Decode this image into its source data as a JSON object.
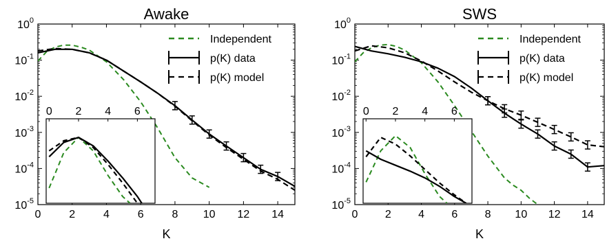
{
  "chart_data": [
    {
      "type": "line",
      "title": "Awake",
      "xlabel": "K",
      "ylabel": "",
      "xlim": [
        0,
        15
      ],
      "ylim": [
        1e-05,
        1
      ],
      "yscale": "log",
      "x_ticks": [
        0,
        2,
        4,
        6,
        8,
        10,
        12,
        14
      ],
      "y_ticks": [
        {
          "base": "10",
          "exp": "0"
        },
        {
          "base": "10",
          "exp": "-1"
        },
        {
          "base": "10",
          "exp": "-2"
        },
        {
          "base": "10",
          "exp": "-3"
        },
        {
          "base": "10",
          "exp": "-4"
        },
        {
          "base": "10",
          "exp": "-5"
        }
      ],
      "legend": {
        "placement": "top-right",
        "entries": [
          {
            "label": "Independent",
            "style": "green-dashed"
          },
          {
            "label": "p(K) data",
            "style": "solid-errorbar"
          },
          {
            "label": "p(K) model",
            "style": "dashed-errorbar"
          }
        ]
      },
      "series": [
        {
          "name": "Independent",
          "color": "#2a8a1f",
          "dash": "dashed",
          "x": [
            0,
            0.5,
            1,
            1.5,
            2,
            2.5,
            3,
            4,
            5,
            6,
            7,
            8,
            9,
            10
          ],
          "y": [
            0.095,
            0.17,
            0.23,
            0.26,
            0.26,
            0.23,
            0.19,
            0.09,
            0.029,
            0.007,
            0.0013,
            0.0002,
            5.5e-05,
            3e-05
          ]
        },
        {
          "name": "p(K) data",
          "color": "#000000",
          "dash": "solid",
          "x": [
            0,
            1,
            2,
            3,
            4,
            5,
            6,
            7,
            8,
            9,
            10,
            11,
            12,
            13,
            14,
            15
          ],
          "y": [
            0.16,
            0.2,
            0.2,
            0.16,
            0.1,
            0.05,
            0.025,
            0.012,
            0.0055,
            0.0022,
            0.0009,
            0.00042,
            0.0002,
            9.5e-05,
            6e-05,
            3.2e-05
          ],
          "error_x": [
            8,
            9,
            10,
            11,
            12,
            13,
            14
          ],
          "error_y": [
            0.0055,
            0.0022,
            0.0009,
            0.00042,
            0.0002,
            9.5e-05,
            6e-05
          ]
        },
        {
          "name": "p(K) model",
          "color": "#000000",
          "dash": "dashed",
          "x": [
            0,
            1,
            2,
            3,
            4,
            5,
            6,
            7,
            8,
            9,
            10,
            11,
            12,
            13,
            14,
            15
          ],
          "y": [
            0.18,
            0.21,
            0.2,
            0.16,
            0.1,
            0.05,
            0.025,
            0.012,
            0.0053,
            0.0021,
            0.00085,
            0.00038,
            0.00018,
            8.5e-05,
            5e-05,
            2.5e-05
          ]
        }
      ],
      "inset": {
        "x_ticks": [
          0,
          2,
          4,
          6
        ],
        "xlim": [
          -0.2,
          7.2
        ],
        "series": [
          {
            "name": "Independent",
            "x": [
              0,
              1,
              2,
              3,
              4,
              5,
              5.5
            ],
            "y": [
              0.18,
              0.6,
              0.78,
              0.62,
              0.33,
              0.08,
              0.0
            ]
          },
          {
            "name": "p(K) data",
            "x": [
              0,
              1,
              2,
              3,
              4,
              5,
              6,
              6.3
            ],
            "y": [
              0.55,
              0.72,
              0.78,
              0.68,
              0.5,
              0.3,
              0.08,
              0.0
            ]
          },
          {
            "name": "p(K) model",
            "x": [
              0,
              1,
              2,
              3,
              4,
              5,
              6
            ],
            "y": [
              0.62,
              0.74,
              0.78,
              0.66,
              0.46,
              0.24,
              0.0
            ]
          }
        ]
      }
    },
    {
      "type": "line",
      "title": "SWS",
      "xlabel": "K",
      "ylabel": "",
      "xlim": [
        0,
        15
      ],
      "ylim": [
        1e-05,
        1
      ],
      "yscale": "log",
      "x_ticks": [
        0,
        2,
        4,
        6,
        8,
        10,
        12,
        14
      ],
      "y_ticks": [
        {
          "base": "10",
          "exp": "0"
        },
        {
          "base": "10",
          "exp": "-1"
        },
        {
          "base": "10",
          "exp": "-2"
        },
        {
          "base": "10",
          "exp": "-3"
        },
        {
          "base": "10",
          "exp": "-4"
        },
        {
          "base": "10",
          "exp": "-5"
        }
      ],
      "legend": {
        "placement": "top-right",
        "entries": [
          {
            "label": "Independent",
            "style": "green-dashed"
          },
          {
            "label": "p(K) data",
            "style": "solid-errorbar"
          },
          {
            "label": "p(K) model",
            "style": "dashed-errorbar"
          }
        ]
      },
      "series": [
        {
          "name": "Independent",
          "color": "#2a8a1f",
          "dash": "dashed",
          "x": [
            0,
            0.5,
            1,
            1.5,
            2,
            2.5,
            3,
            4,
            5,
            6,
            7,
            8,
            9,
            9.5,
            10,
            10.5,
            11
          ],
          "y": [
            0.09,
            0.16,
            0.22,
            0.26,
            0.27,
            0.24,
            0.19,
            0.085,
            0.025,
            0.0055,
            0.0011,
            0.00022,
            5.5e-05,
            3.5e-05,
            2.5e-05,
            1.5e-05,
            1e-05
          ]
        },
        {
          "name": "p(K) data",
          "color": "#000000",
          "dash": "solid",
          "x": [
            0,
            1,
            2,
            3,
            4,
            5,
            6,
            7,
            8,
            9,
            10,
            11,
            12,
            13,
            14,
            15
          ],
          "y": [
            0.24,
            0.18,
            0.15,
            0.12,
            0.09,
            0.06,
            0.035,
            0.017,
            0.0075,
            0.0034,
            0.0017,
            0.0009,
            0.00042,
            0.00025,
            0.00011,
            0.00012
          ],
          "error_x": [
            8,
            9,
            10,
            11,
            12,
            13,
            14
          ],
          "error_y": [
            0.0075,
            0.0034,
            0.0017,
            0.0009,
            0.00042,
            0.00025,
            0.00011
          ]
        },
        {
          "name": "p(K) model",
          "color": "#000000",
          "dash": "dashed",
          "x": [
            0,
            1,
            2,
            3,
            4,
            5,
            6,
            7,
            8,
            9,
            10,
            11,
            12,
            13,
            14,
            15
          ],
          "y": [
            0.18,
            0.25,
            0.22,
            0.16,
            0.095,
            0.05,
            0.025,
            0.013,
            0.0075,
            0.0045,
            0.003,
            0.0019,
            0.0012,
            0.00075,
            0.00045,
            0.0004
          ],
          "error_x": [
            8,
            9,
            10,
            11,
            12,
            13,
            14
          ],
          "error_y": [
            0.0075,
            0.0045,
            0.003,
            0.0019,
            0.0012,
            0.00075,
            0.00045
          ]
        }
      ],
      "inset": {
        "x_ticks": [
          0,
          2,
          4,
          6
        ],
        "xlim": [
          -0.2,
          7.2
        ],
        "series": [
          {
            "name": "Independent",
            "x": [
              0,
              1,
              2,
              3,
              4,
              5,
              5.5
            ],
            "y": [
              0.25,
              0.62,
              0.8,
              0.66,
              0.35,
              0.08,
              0.0
            ]
          },
          {
            "name": "p(K) data",
            "x": [
              0,
              1,
              2,
              3,
              4,
              5,
              6,
              6.8
            ],
            "y": [
              0.62,
              0.52,
              0.45,
              0.38,
              0.3,
              0.2,
              0.08,
              0.0
            ]
          },
          {
            "name": "p(K) model",
            "x": [
              0,
              1,
              2,
              3,
              4,
              5,
              6,
              6.8
            ],
            "y": [
              0.55,
              0.78,
              0.7,
              0.56,
              0.4,
              0.24,
              0.1,
              0.0
            ]
          }
        ]
      }
    }
  ]
}
